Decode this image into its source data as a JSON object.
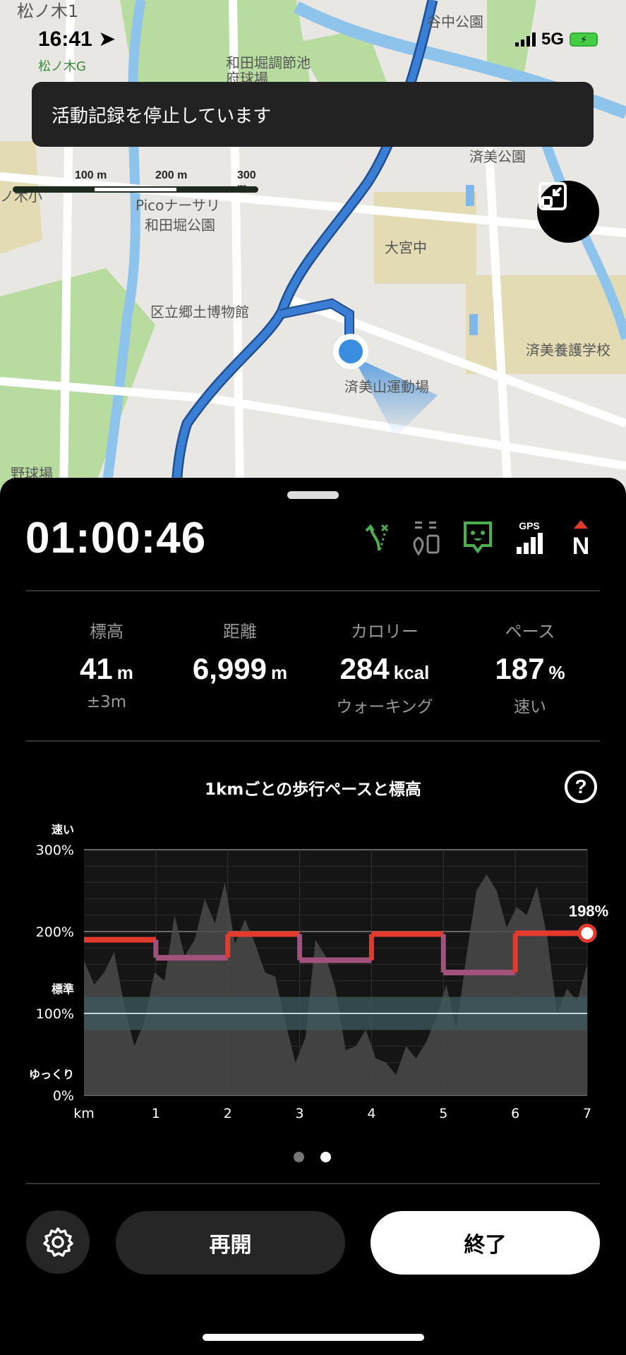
{
  "status_bar": {
    "time": "16:41",
    "network": "5G"
  },
  "map": {
    "labels": [
      "松ノ木1",
      "松ノ木G",
      "和田堀調節池府球場",
      "谷中公園",
      "済美公園",
      "ノ木小",
      "Picoナーサリ",
      "和田堀公園",
      "大宮中",
      "区立郷土博物館",
      "済美養護学校",
      "済美山運動場",
      "野球場"
    ],
    "scale": [
      "100 m",
      "200 m",
      "300 m"
    ],
    "route_color": "#3a7fd5"
  },
  "toast": "活動記録を停止しています",
  "timer": "01:00:46",
  "status_icons": [
    "route-deviation-icon",
    "device-location-icon",
    "voice-guide-icon",
    "gps-signal-icon",
    "compass-north-icon"
  ],
  "gps_label": "GPS",
  "compass_label": "N",
  "stats": [
    {
      "label": "標高",
      "value": "41",
      "unit": "m",
      "sub": "±3m"
    },
    {
      "label": "距離",
      "value": "6,999",
      "unit": "m",
      "sub": ""
    },
    {
      "label": "カロリー",
      "value": "284",
      "unit": "kcal",
      "sub": "ウォーキング"
    },
    {
      "label": "ペース",
      "value": "187",
      "unit": "%",
      "sub": "速い"
    }
  ],
  "chart_data": {
    "type": "line",
    "title": "1kmごとの歩行ペースと標高",
    "xlabel": "km",
    "x_ticks": [
      "1",
      "2",
      "3",
      "4",
      "5",
      "6",
      "7"
    ],
    "y_ticks": [
      "0%",
      "100%",
      "200%",
      "300%"
    ],
    "y_annotations": {
      "fast": "速い",
      "standard": "標準",
      "slow": "ゆっくり"
    },
    "ylim": [
      0,
      300
    ],
    "xlim": [
      0,
      7
    ],
    "standard_band": [
      80,
      120
    ],
    "series": [
      {
        "type": "step",
        "km_end": [
          1,
          2,
          3,
          4,
          5,
          6,
          7
        ],
        "values": [
          190,
          168,
          197,
          165,
          197,
          150,
          198
        ]
      }
    ],
    "current_label": "198%",
    "elevation_profile": [
      165,
      135,
      150,
      175,
      110,
      60,
      90,
      150,
      140,
      220,
      170,
      190,
      240,
      210,
      260,
      185,
      215,
      185,
      150,
      145,
      90,
      40,
      70,
      190,
      170,
      130,
      55,
      60,
      80,
      45,
      40,
      25,
      60,
      45,
      65,
      95,
      135,
      80,
      170,
      250,
      270,
      250,
      205,
      230,
      220,
      255,
      195,
      100,
      130,
      115,
      160
    ],
    "colors": {
      "fast": "#e23b2e",
      "slower": "#a0527a",
      "standard_band": "#3c5a60",
      "elevation": "#4a4a4a"
    }
  },
  "pager": {
    "pages": 2,
    "active": 2
  },
  "buttons": {
    "resume": "再開",
    "finish": "終了"
  }
}
